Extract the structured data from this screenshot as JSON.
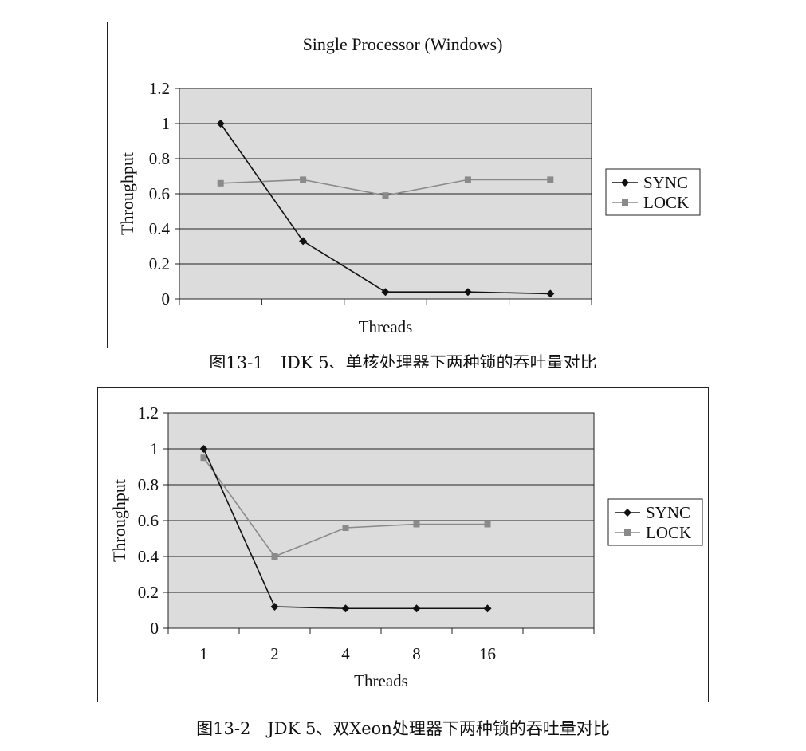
{
  "chart_data": [
    {
      "type": "line",
      "title": "Single Processor (Windows)",
      "xlabel": "Threads",
      "ylabel": "Throughput",
      "categories": [
        "",
        "",
        "",
        "",
        ""
      ],
      "ylim": [
        0,
        1.2
      ],
      "yticks": [
        "0",
        "0.2",
        "0.4",
        "0.6",
        "0.8",
        "1",
        "1.2"
      ],
      "grid": true,
      "legend": "right",
      "series": [
        {
          "name": "SYNC",
          "values": [
            1.0,
            0.33,
            0.04,
            0.04,
            0.03
          ],
          "color": "#111111",
          "marker": "diamond"
        },
        {
          "name": "LOCK",
          "values": [
            0.66,
            0.68,
            0.59,
            0.68,
            0.68
          ],
          "color": "#8a8a8a",
          "marker": "square"
        }
      ]
    },
    {
      "type": "line",
      "title": "",
      "xlabel": "Threads",
      "ylabel": "Throughput",
      "categories": [
        "1",
        "2",
        "4",
        "8",
        "16"
      ],
      "ylim": [
        0,
        1.2
      ],
      "yticks": [
        "0",
        "0.2",
        "0.4",
        "0.6",
        "0.8",
        "1",
        "1.2"
      ],
      "grid": true,
      "legend": "right",
      "series": [
        {
          "name": "SYNC",
          "values": [
            1.0,
            0.12,
            0.11,
            0.11,
            0.11
          ],
          "color": "#111111",
          "marker": "diamond"
        },
        {
          "name": "LOCK",
          "values": [
            0.95,
            0.4,
            0.56,
            0.58,
            0.58
          ],
          "color": "#8a8a8a",
          "marker": "square"
        }
      ]
    }
  ],
  "captions": {
    "fig1": "图13-1　JDK 5、单核处理器下两种锁的吞吐量对比",
    "fig2": "图13-2　JDK 5、双Xeon处理器下两种锁的吞吐量对比"
  },
  "colors": {
    "plot_bg": "#dcdcdc",
    "grid": "#222222"
  }
}
